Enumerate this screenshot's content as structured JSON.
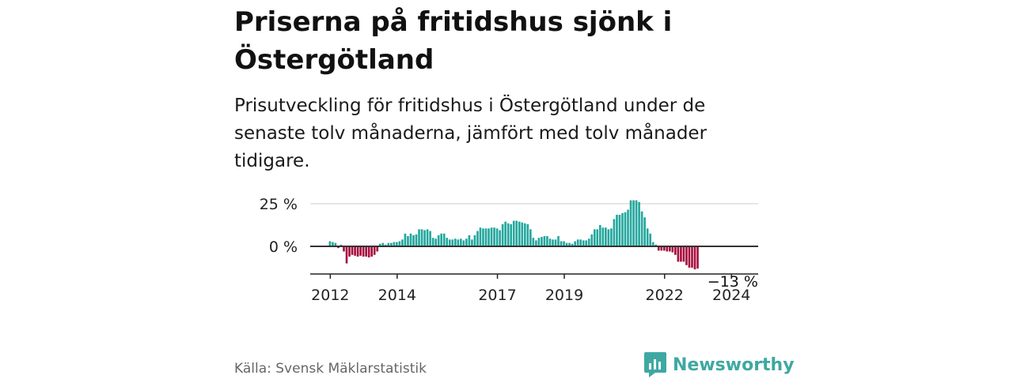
{
  "title": "Priserna på fritidshus sjönk i Östergötland",
  "subtitle": "Prisutveckling för fritidshus i Östergötland under de senaste tolv månaderna, jämfört med tolv månader tidigare.",
  "source": "Källa: Svensk Mäklarstatistik",
  "brand": "Newsworthy",
  "colors": {
    "positive": "#23a79d",
    "negative": "#a50d3d",
    "grid": "#dddddd",
    "zero_line": "#333333",
    "brand": "#3fa8a2"
  },
  "chart_data": {
    "type": "bar",
    "title": "Priserna på fritidshus sjönk i Östergötland",
    "xlabel": "",
    "ylabel": "",
    "x_start": 2012.0,
    "x_step": 0.0833333,
    "xlim": [
      2011.4,
      2024.8
    ],
    "ylim": [
      -13.5,
      27.5
    ],
    "y_ticks": [
      {
        "value": 0,
        "label": "0 %"
      },
      {
        "value": 25,
        "label": "25 %"
      }
    ],
    "x_ticks": [
      {
        "value": 2012.0,
        "label": "2012"
      },
      {
        "value": 2014.0,
        "label": "2014"
      },
      {
        "value": 2017.0,
        "label": "2017"
      },
      {
        "value": 2019.0,
        "label": "2019"
      },
      {
        "value": 2022.0,
        "label": "2022"
      },
      {
        "value": 2024.0,
        "label": "2024"
      }
    ],
    "annotation": {
      "value": -13,
      "label": "−13 %"
    },
    "values": [
      3,
      2.5,
      2,
      -1,
      1,
      -3,
      -10,
      -6,
      -5,
      -5.5,
      -6,
      -5.5,
      -6,
      -6,
      -6.5,
      -6,
      -5,
      -3,
      1.5,
      2,
      1,
      2,
      2,
      2.5,
      2.5,
      3,
      4,
      7.5,
      6,
      7.5,
      6.5,
      7,
      10,
      10,
      9.5,
      10,
      9,
      5,
      4.5,
      6.5,
      7.5,
      7.5,
      5,
      4,
      4,
      4.5,
      4,
      4.5,
      3.5,
      4.5,
      6.5,
      4,
      6.5,
      9,
      11,
      10.5,
      10.5,
      10.5,
      11,
      11,
      10.5,
      9.5,
      13,
      14.5,
      13.5,
      13,
      15,
      15,
      14.5,
      14,
      13.5,
      13,
      10,
      5,
      3.5,
      5,
      5.5,
      6,
      6,
      4.5,
      4,
      4,
      6,
      3,
      3,
      2,
      2,
      1.5,
      3,
      4,
      4,
      3.5,
      3.5,
      4.5,
      7,
      10,
      10,
      12.5,
      11,
      11,
      10,
      10.5,
      16,
      18.5,
      18.5,
      19.5,
      20,
      21.5,
      27,
      27,
      27,
      26,
      20.5,
      17,
      10.5,
      7.5,
      2.5,
      1,
      -2.5,
      -2.5,
      -2.5,
      -3,
      -3,
      -3.5,
      -5,
      -9,
      -9,
      -9,
      -11,
      -12.5,
      -12.5,
      -13.5,
      -13
    ]
  }
}
